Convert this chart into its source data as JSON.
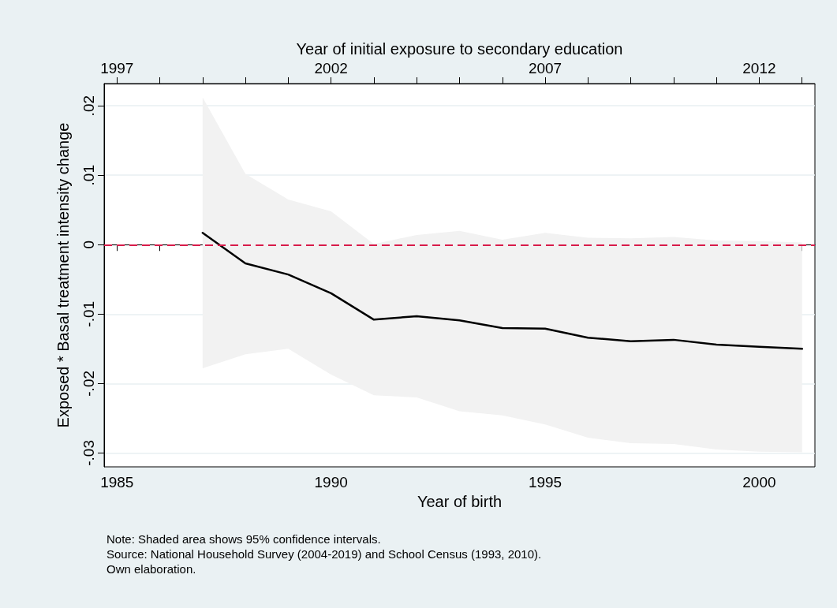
{
  "chart_data": {
    "type": "line",
    "x": [
      1987,
      1988,
      1989,
      1990,
      1991,
      1992,
      1993,
      1994,
      1995,
      1996,
      1997,
      1998,
      1999,
      2000,
      2001
    ],
    "series": [
      {
        "color": "#000000",
        "values": [
          0.0017,
          -0.0027,
          -0.0043,
          -0.007,
          -0.0108,
          -0.0103,
          -0.0109,
          -0.012,
          -0.0121,
          -0.0134,
          -0.0139,
          -0.0137,
          -0.0144,
          -0.0147,
          -0.015
        ],
        "lower": [
          -0.0178,
          -0.0158,
          -0.015,
          -0.0187,
          -0.0217,
          -0.022,
          -0.024,
          -0.0246,
          -0.0259,
          -0.0278,
          -0.0286,
          -0.0287,
          -0.0295,
          -0.0298,
          -0.0299
        ],
        "upper": [
          0.0212,
          0.0102,
          0.0065,
          0.0048,
          0.0001,
          0.0014,
          0.002,
          0.0007,
          0.0017,
          0.001,
          0.0009,
          0.0011,
          0.0006,
          0.0005,
          0.0003
        ]
      }
    ],
    "xlabel": "Year of birth",
    "x2label": "Year of initial exposure to secondary education",
    "ylabel": "Exposed * Basal treatment intensity change",
    "xlim": [
      1984.7,
      2001.3
    ],
    "xticks": [
      1985,
      {
        "value": 1986,
        "label": null
      },
      {
        "value": 1987,
        "label": null
      },
      {
        "value": 1988,
        "label": null
      },
      {
        "value": 1989,
        "label": null
      },
      1990,
      {
        "value": 1991,
        "label": null
      },
      {
        "value": 1992,
        "label": null
      },
      {
        "value": 1993,
        "label": null
      },
      {
        "value": 1994,
        "label": null
      },
      1995,
      {
        "value": 1996,
        "label": null
      },
      {
        "value": 1997,
        "label": null
      },
      {
        "value": 1998,
        "label": null
      },
      {
        "value": 1999,
        "label": null
      },
      2000,
      {
        "value": 2001,
        "label": null
      }
    ],
    "x2lim": [
      1996.7,
      2013.3
    ],
    "x2ticks": [
      1997,
      {
        "value": 1998,
        "label": null
      },
      {
        "value": 1999,
        "label": null
      },
      {
        "value": 2000,
        "label": null
      },
      {
        "value": 2001,
        "label": null
      },
      2002,
      {
        "value": 2003,
        "label": null
      },
      {
        "value": 2004,
        "label": null
      },
      {
        "value": 2005,
        "label": null
      },
      {
        "value": 2006,
        "label": null
      },
      2007,
      {
        "value": 2008,
        "label": null
      },
      {
        "value": 2009,
        "label": null
      },
      {
        "value": 2010,
        "label": null
      },
      {
        "value": 2011,
        "label": null
      },
      2012,
      {
        "value": 2013,
        "label": null
      }
    ],
    "ylim": [
      -0.032,
      0.0232
    ],
    "yticks": [
      {
        "value": -0.03,
        "label": "-.03"
      },
      {
        "value": -0.02,
        "label": "-.02"
      },
      {
        "value": -0.01,
        "label": "-.01"
      },
      0,
      {
        "value": 0.01,
        "label": ".01"
      },
      {
        "value": 0.02,
        "label": ".02"
      }
    ],
    "ref_lines": [
      {
        "axis": "y",
        "value": 0,
        "color": "#d81b4a",
        "line_style": "dashed"
      }
    ],
    "grid": "y",
    "marker": "none",
    "line_style": "solid",
    "annotations": [
      "Note: Shaded area shows 95% confidence intervals.",
      "Source: National Household Survey (2004-2019) and School Census (1993, 2010).",
      "Own elaboration."
    ]
  }
}
